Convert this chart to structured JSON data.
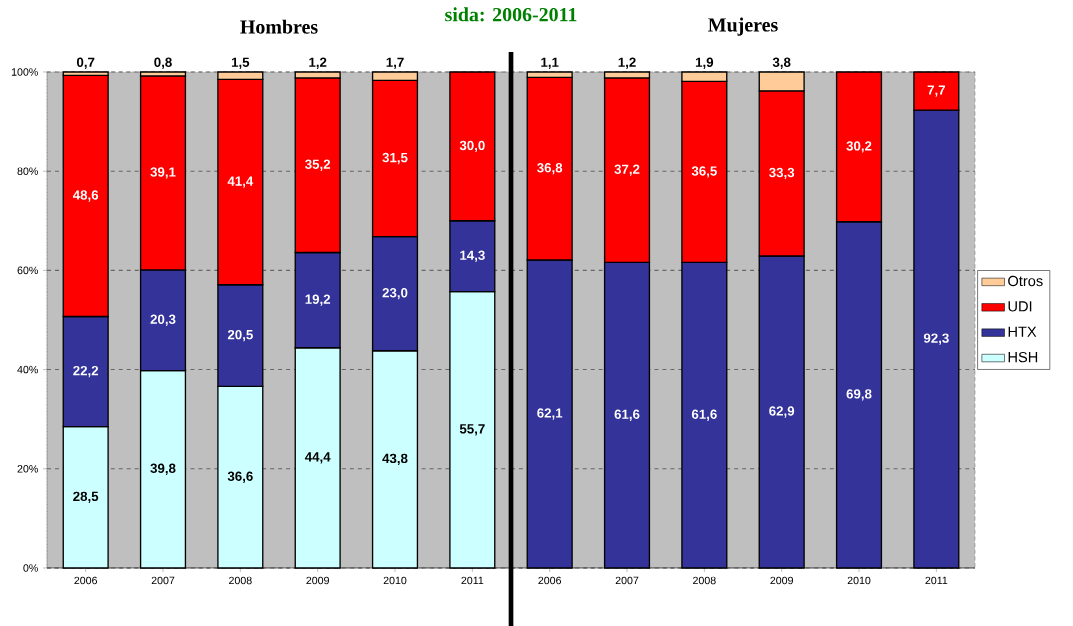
{
  "chart_data": [
    {
      "type": "bar",
      "stacked": true,
      "title": "Hombres",
      "annotations": [
        "sida: 2006-2011"
      ],
      "categories": [
        "2006",
        "2007",
        "2008",
        "2009",
        "2010",
        "2011"
      ],
      "series": [
        {
          "color": "#ccffff",
          "values": [
            28.5,
            39.8,
            36.6,
            44.4,
            43.8,
            55.7
          ],
          "value_labels": [
            "28,5",
            "39,8",
            "36,6",
            "44,4",
            "43,8",
            "55,7"
          ]
        },
        {
          "color": "#333399",
          "values": [
            22.2,
            20.3,
            20.5,
            19.2,
            23.0,
            14.3
          ],
          "value_labels": [
            "22,2",
            "20,3",
            "20,5",
            "19,2",
            "23,0",
            "14,3"
          ]
        },
        {
          "color": "#ff0000",
          "values": [
            48.6,
            39.1,
            41.4,
            35.2,
            31.5,
            30.0
          ],
          "value_labels": [
            "48,6",
            "39,1",
            "41,4",
            "35,2",
            "31,5",
            "30,0"
          ]
        },
        {
          "color": "#ffcc99",
          "values": [
            0.7,
            0.8,
            1.5,
            1.2,
            1.7,
            null
          ],
          "value_labels": [
            "0,7",
            "0,8",
            "1,5",
            "1,2",
            "1,7",
            null
          ]
        }
      ],
      "ylim": [
        0,
        100
      ],
      "yticks": [
        {
          "value": 0,
          "label": "0%"
        },
        {
          "value": 20,
          "label": "20%"
        },
        {
          "value": 40,
          "label": "40%"
        },
        {
          "value": 60,
          "label": "60%"
        },
        {
          "value": 80,
          "label": "80%"
        },
        {
          "value": 100,
          "label": "100%"
        }
      ],
      "grid": "y"
    },
    {
      "type": "bar",
      "stacked": true,
      "title": "Mujeres",
      "categories": [
        "2006",
        "2007",
        "2008",
        "2009",
        "2010",
        "2011"
      ],
      "series": [
        {
          "name": "HSH",
          "color": "#ccffff",
          "values": [
            null,
            null,
            null,
            null,
            null,
            null
          ],
          "value_labels": [
            null,
            null,
            null,
            null,
            null,
            null
          ]
        },
        {
          "name": "HTX",
          "color": "#333399",
          "values": [
            62.1,
            61.6,
            61.6,
            62.9,
            69.8,
            92.3
          ],
          "value_labels": [
            "62,1",
            "61,6",
            "61,6",
            "62,9",
            "69,8",
            "92,3"
          ]
        },
        {
          "name": "UDI",
          "color": "#ff0000",
          "values": [
            36.8,
            37.2,
            36.5,
            33.3,
            30.2,
            7.7
          ],
          "value_labels": [
            "36,8",
            "37,2",
            "36,5",
            "33,3",
            "30,2",
            "7,7"
          ]
        },
        {
          "name": "Otros",
          "color": "#ffcc99",
          "values": [
            1.1,
            1.2,
            1.9,
            3.8,
            null,
            null
          ],
          "value_labels": [
            "1,1",
            "1,2",
            "1,9",
            "3,8",
            null,
            null
          ]
        }
      ],
      "ylim": [
        0,
        100
      ],
      "yticks": [
        {
          "value": 0,
          "label": null
        },
        {
          "value": 20,
          "label": null
        },
        {
          "value": 40,
          "label": null
        },
        {
          "value": 60,
          "label": null
        },
        {
          "value": 80,
          "label": null
        },
        {
          "value": 100,
          "label": null
        }
      ],
      "grid": "y",
      "legend": "right",
      "tick_labels": "x"
    }
  ]
}
